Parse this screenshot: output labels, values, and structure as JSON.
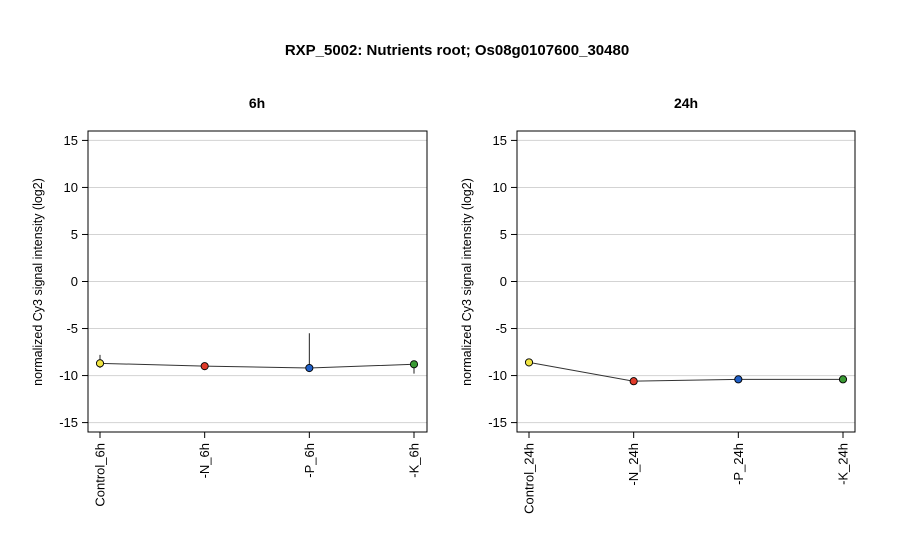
{
  "title": "RXP_5002: Nutrients root; Os08g0107600_30480",
  "chart_data": [
    {
      "type": "line",
      "title": "6h",
      "ylabel": "normalized Cy3 signal intensity (log2)",
      "ylim": [
        -16,
        16
      ],
      "yticks": [
        -15,
        -10,
        -5,
        0,
        5,
        10,
        15
      ],
      "grid": true,
      "categories": [
        "Control_6h",
        "-N_6h",
        "-P_6h",
        "-K_6h"
      ],
      "values": [
        -8.7,
        -9.0,
        -9.2,
        -8.8
      ],
      "err_low": [
        -9.2,
        -9.2,
        -9.3,
        -9.8
      ],
      "err_high": [
        -7.8,
        -8.8,
        -5.5,
        -8.5
      ],
      "colors": [
        "#f0e442",
        "#e03b2a",
        "#2060c8",
        "#3a9a34"
      ]
    },
    {
      "type": "line",
      "title": "24h",
      "ylabel": "normalized Cy3 signal intensity (log2)",
      "ylim": [
        -16,
        16
      ],
      "yticks": [
        -15,
        -10,
        -5,
        0,
        5,
        10,
        15
      ],
      "grid": true,
      "categories": [
        "Control_24h",
        "-N_24h",
        "-P_24h",
        "-K_24h"
      ],
      "values": [
        -8.6,
        -10.6,
        -10.4,
        -10.4
      ],
      "err_low": [
        -8.8,
        -10.7,
        -10.5,
        -10.5
      ],
      "err_high": [
        -8.3,
        -10.5,
        -10.3,
        -10.3
      ],
      "colors": [
        "#f0e442",
        "#e03b2a",
        "#2060c8",
        "#3a9a34"
      ]
    }
  ]
}
